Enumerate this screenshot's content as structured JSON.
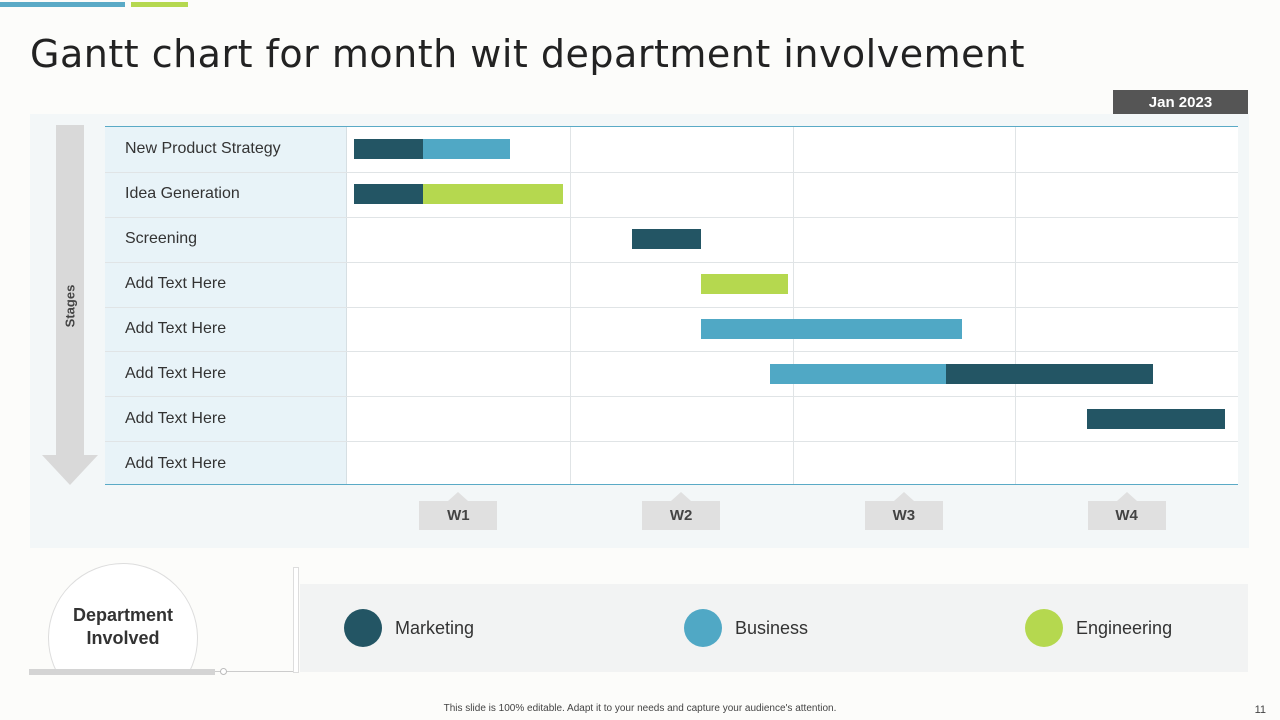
{
  "title": "Gantt chart for month wit department involvement",
  "month_badge": "Jan 2023",
  "stages_label": "Stages",
  "department": {
    "line1": "Department",
    "line2": "Involved"
  },
  "legend": [
    {
      "name": "Marketing",
      "color": "#235564"
    },
    {
      "name": "Business",
      "color": "#50a8c5"
    },
    {
      "name": "Engineering",
      "color": "#b5d84f"
    }
  ],
  "footer": "This slide is 100% editable.  Adapt it to your needs and capture your audience's attention.",
  "page_number": "11",
  "chart_data": {
    "type": "gantt",
    "title": "Gantt chart for month wit department involvement",
    "period": "Jan 2023",
    "axis_unit": "weeks",
    "x_range": [
      0,
      4
    ],
    "weeks": [
      "W1",
      "W2",
      "W3",
      "W4"
    ],
    "tasks": [
      {
        "name": "New Product Strategy",
        "segments": [
          {
            "dept": "Marketing",
            "start": 0.03,
            "end": 0.34
          },
          {
            "dept": "Business",
            "start": 0.34,
            "end": 0.73
          }
        ]
      },
      {
        "name": "Idea Generation",
        "segments": [
          {
            "dept": "Marketing",
            "start": 0.03,
            "end": 0.34
          },
          {
            "dept": "Engineering",
            "start": 0.34,
            "end": 0.97
          }
        ]
      },
      {
        "name": "Screening",
        "segments": [
          {
            "dept": "Marketing",
            "start": 1.28,
            "end": 1.59
          }
        ]
      },
      {
        "name": "Add Text Here",
        "segments": [
          {
            "dept": "Engineering",
            "start": 1.59,
            "end": 1.98
          }
        ]
      },
      {
        "name": "Add Text Here",
        "segments": [
          {
            "dept": "Business",
            "start": 1.59,
            "end": 2.76
          }
        ]
      },
      {
        "name": "Add Text Here",
        "segments": [
          {
            "dept": "Business",
            "start": 1.9,
            "end": 2.69
          },
          {
            "dept": "Marketing",
            "start": 2.69,
            "end": 3.62
          }
        ]
      },
      {
        "name": "Add Text Here",
        "segments": [
          {
            "dept": "Marketing",
            "start": 3.32,
            "end": 3.94
          }
        ]
      },
      {
        "name": "Add Text Here",
        "segments": []
      }
    ],
    "legend": [
      "Marketing",
      "Business",
      "Engineering"
    ]
  }
}
